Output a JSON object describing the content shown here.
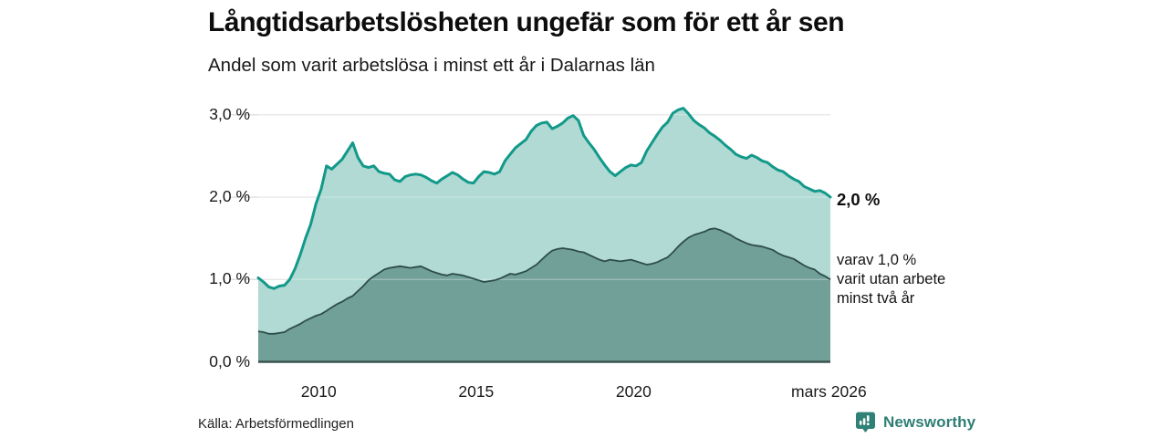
{
  "chart_data": {
    "type": "area",
    "title": "Långtidsarbetslösheten ungefär som för ett år sen",
    "subtitle": "Andel som varit arbetslösa i minst ett år i Dalarnas län",
    "unit": "%",
    "x_start_year": 2008.08,
    "x_step_years": 0.16667,
    "x_tick_labels": [
      "2010",
      "2015",
      "2020",
      "mars 2026"
    ],
    "x_tick_positions_years": [
      2010,
      2015,
      2020,
      2026.2
    ],
    "y_tick_labels": [
      "3,0 %",
      "2,0 %",
      "1,0 %",
      "0,0 %"
    ],
    "y_tick_values": [
      3,
      2,
      1,
      0
    ],
    "ylim": [
      0,
      3.2
    ],
    "grid": true,
    "legend_position": "end-of-line-labels",
    "series": [
      {
        "name": "Andel som varit arbetslösa i minst ett år",
        "end_label": "2,0 %",
        "end_value": 2.0,
        "line_color": "#12998a",
        "fill_color": "#b0dad3",
        "values": [
          1.02,
          0.97,
          0.91,
          0.89,
          0.92,
          0.93,
          1.0,
          1.13,
          1.3,
          1.5,
          1.67,
          1.92,
          2.1,
          2.38,
          2.34,
          2.4,
          2.46,
          2.56,
          2.66,
          2.48,
          2.38,
          2.36,
          2.38,
          2.31,
          2.29,
          2.28,
          2.21,
          2.19,
          2.25,
          2.27,
          2.28,
          2.27,
          2.24,
          2.2,
          2.17,
          2.22,
          2.26,
          2.3,
          2.27,
          2.22,
          2.18,
          2.17,
          2.25,
          2.31,
          2.3,
          2.28,
          2.31,
          2.44,
          2.52,
          2.6,
          2.65,
          2.7,
          2.8,
          2.87,
          2.9,
          2.91,
          2.83,
          2.86,
          2.9,
          2.96,
          2.99,
          2.93,
          2.75,
          2.66,
          2.58,
          2.48,
          2.39,
          2.31,
          2.26,
          2.31,
          2.36,
          2.39,
          2.38,
          2.42,
          2.56,
          2.66,
          2.76,
          2.85,
          2.91,
          3.02,
          3.06,
          3.08,
          3.01,
          2.93,
          2.88,
          2.84,
          2.78,
          2.74,
          2.69,
          2.63,
          2.58,
          2.52,
          2.49,
          2.47,
          2.51,
          2.48,
          2.44,
          2.42,
          2.37,
          2.33,
          2.31,
          2.26,
          2.22,
          2.19,
          2.13,
          2.1,
          2.07,
          2.08,
          2.05,
          2.0
        ]
      },
      {
        "name": "varav utan arbete minst två år",
        "end_label": "varav 1,0 % varit utan arbete minst två år",
        "end_value": 1.0,
        "line_color": "#2f4d48",
        "fill_color": "#70a098",
        "values": [
          0.37,
          0.36,
          0.34,
          0.34,
          0.35,
          0.36,
          0.4,
          0.43,
          0.46,
          0.5,
          0.53,
          0.56,
          0.58,
          0.62,
          0.66,
          0.7,
          0.73,
          0.77,
          0.8,
          0.86,
          0.92,
          0.99,
          1.04,
          1.08,
          1.12,
          1.14,
          1.15,
          1.16,
          1.15,
          1.14,
          1.15,
          1.16,
          1.13,
          1.1,
          1.08,
          1.06,
          1.05,
          1.07,
          1.06,
          1.05,
          1.03,
          1.01,
          0.99,
          0.97,
          0.98,
          0.99,
          1.01,
          1.04,
          1.07,
          1.06,
          1.08,
          1.1,
          1.14,
          1.18,
          1.24,
          1.3,
          1.35,
          1.37,
          1.38,
          1.37,
          1.36,
          1.34,
          1.33,
          1.3,
          1.27,
          1.24,
          1.22,
          1.24,
          1.23,
          1.22,
          1.23,
          1.24,
          1.22,
          1.2,
          1.18,
          1.19,
          1.21,
          1.24,
          1.27,
          1.33,
          1.4,
          1.46,
          1.51,
          1.54,
          1.56,
          1.58,
          1.61,
          1.62,
          1.6,
          1.57,
          1.54,
          1.5,
          1.47,
          1.44,
          1.42,
          1.41,
          1.4,
          1.38,
          1.36,
          1.32,
          1.29,
          1.27,
          1.25,
          1.21,
          1.17,
          1.14,
          1.12,
          1.07,
          1.04,
          1.0
        ]
      }
    ]
  },
  "annotations": {
    "total_end_label": "2,0 %",
    "two_year_lines": [
      "varav 1,0 %",
      "varit utan arbete",
      "minst två år"
    ]
  },
  "footer": {
    "source": "Källa: Arbetsförmedlingen",
    "brand_name": "Newsworthy",
    "brand_icon": "newsworthy-speech-bubble-bar-chart-icon"
  },
  "colors": {
    "grid_line": "#d8d8d8",
    "grid_overlay": "rgba(255,255,255,0.35)",
    "baseline": "#3d5350",
    "brand_teal": "#2e7e74",
    "title_text": "#0d0d0d"
  }
}
